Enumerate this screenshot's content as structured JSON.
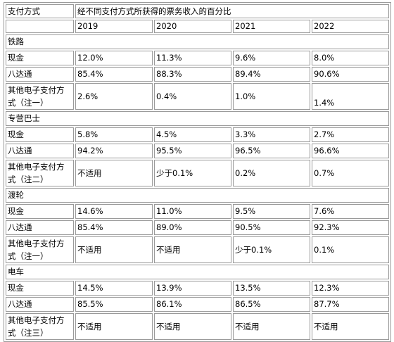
{
  "header": {
    "col_label": "支付方式",
    "title": "经不同支付方式所获得的票务收入的百分比",
    "years": [
      "2019",
      "2020",
      "2021",
      "2022"
    ]
  },
  "sections": [
    {
      "name": "铁路",
      "rows": [
        {
          "label": "现金",
          "values": [
            "12.0%",
            "11.3%",
            "9.6%",
            "8.0%"
          ]
        },
        {
          "label": "八达通",
          "values": [
            "85.4%",
            "88.3%",
            "89.4%",
            "90.6%"
          ]
        },
        {
          "label": "其他电子支付方式（注一）",
          "values": [
            "2.6%",
            "0.4%",
            "1.0%",
            "1.4%"
          ]
        }
      ]
    },
    {
      "name": "专营巴士",
      "rows": [
        {
          "label": "现金",
          "values": [
            "5.8%",
            "4.5%",
            "3.3%",
            "2.7%"
          ]
        },
        {
          "label": "八达通",
          "values": [
            "94.2%",
            "95.5%",
            "96.5%",
            "96.6%"
          ]
        },
        {
          "label": "其他电子支付方式（注二）",
          "values": [
            "不适用",
            "少于0.1%",
            "0.2%",
            "0.7%"
          ]
        }
      ]
    },
    {
      "name": "渡轮",
      "rows": [
        {
          "label": "现金",
          "values": [
            "14.6%",
            "11.0%",
            "9.5%",
            "7.6%"
          ]
        },
        {
          "label": "八达通",
          "values": [
            "85.4%",
            "89.0%",
            "90.5%",
            "92.3%"
          ]
        },
        {
          "label": "其他电子支付方式（注一）",
          "values": [
            "不适用",
            "不适用",
            "少于0.1%",
            "0.1%"
          ]
        }
      ]
    },
    {
      "name": "电车",
      "rows": [
        {
          "label": "现金",
          "values": [
            "14.5%",
            "13.9%",
            "13.5%",
            "12.3%"
          ]
        },
        {
          "label": "八达通",
          "values": [
            "85.5%",
            "86.1%",
            "86.5%",
            "87.7%"
          ]
        },
        {
          "label": "其他电子支付方式（注三）",
          "values": [
            "不适用",
            "不适用",
            "不适用",
            "不适用"
          ]
        }
      ]
    }
  ]
}
